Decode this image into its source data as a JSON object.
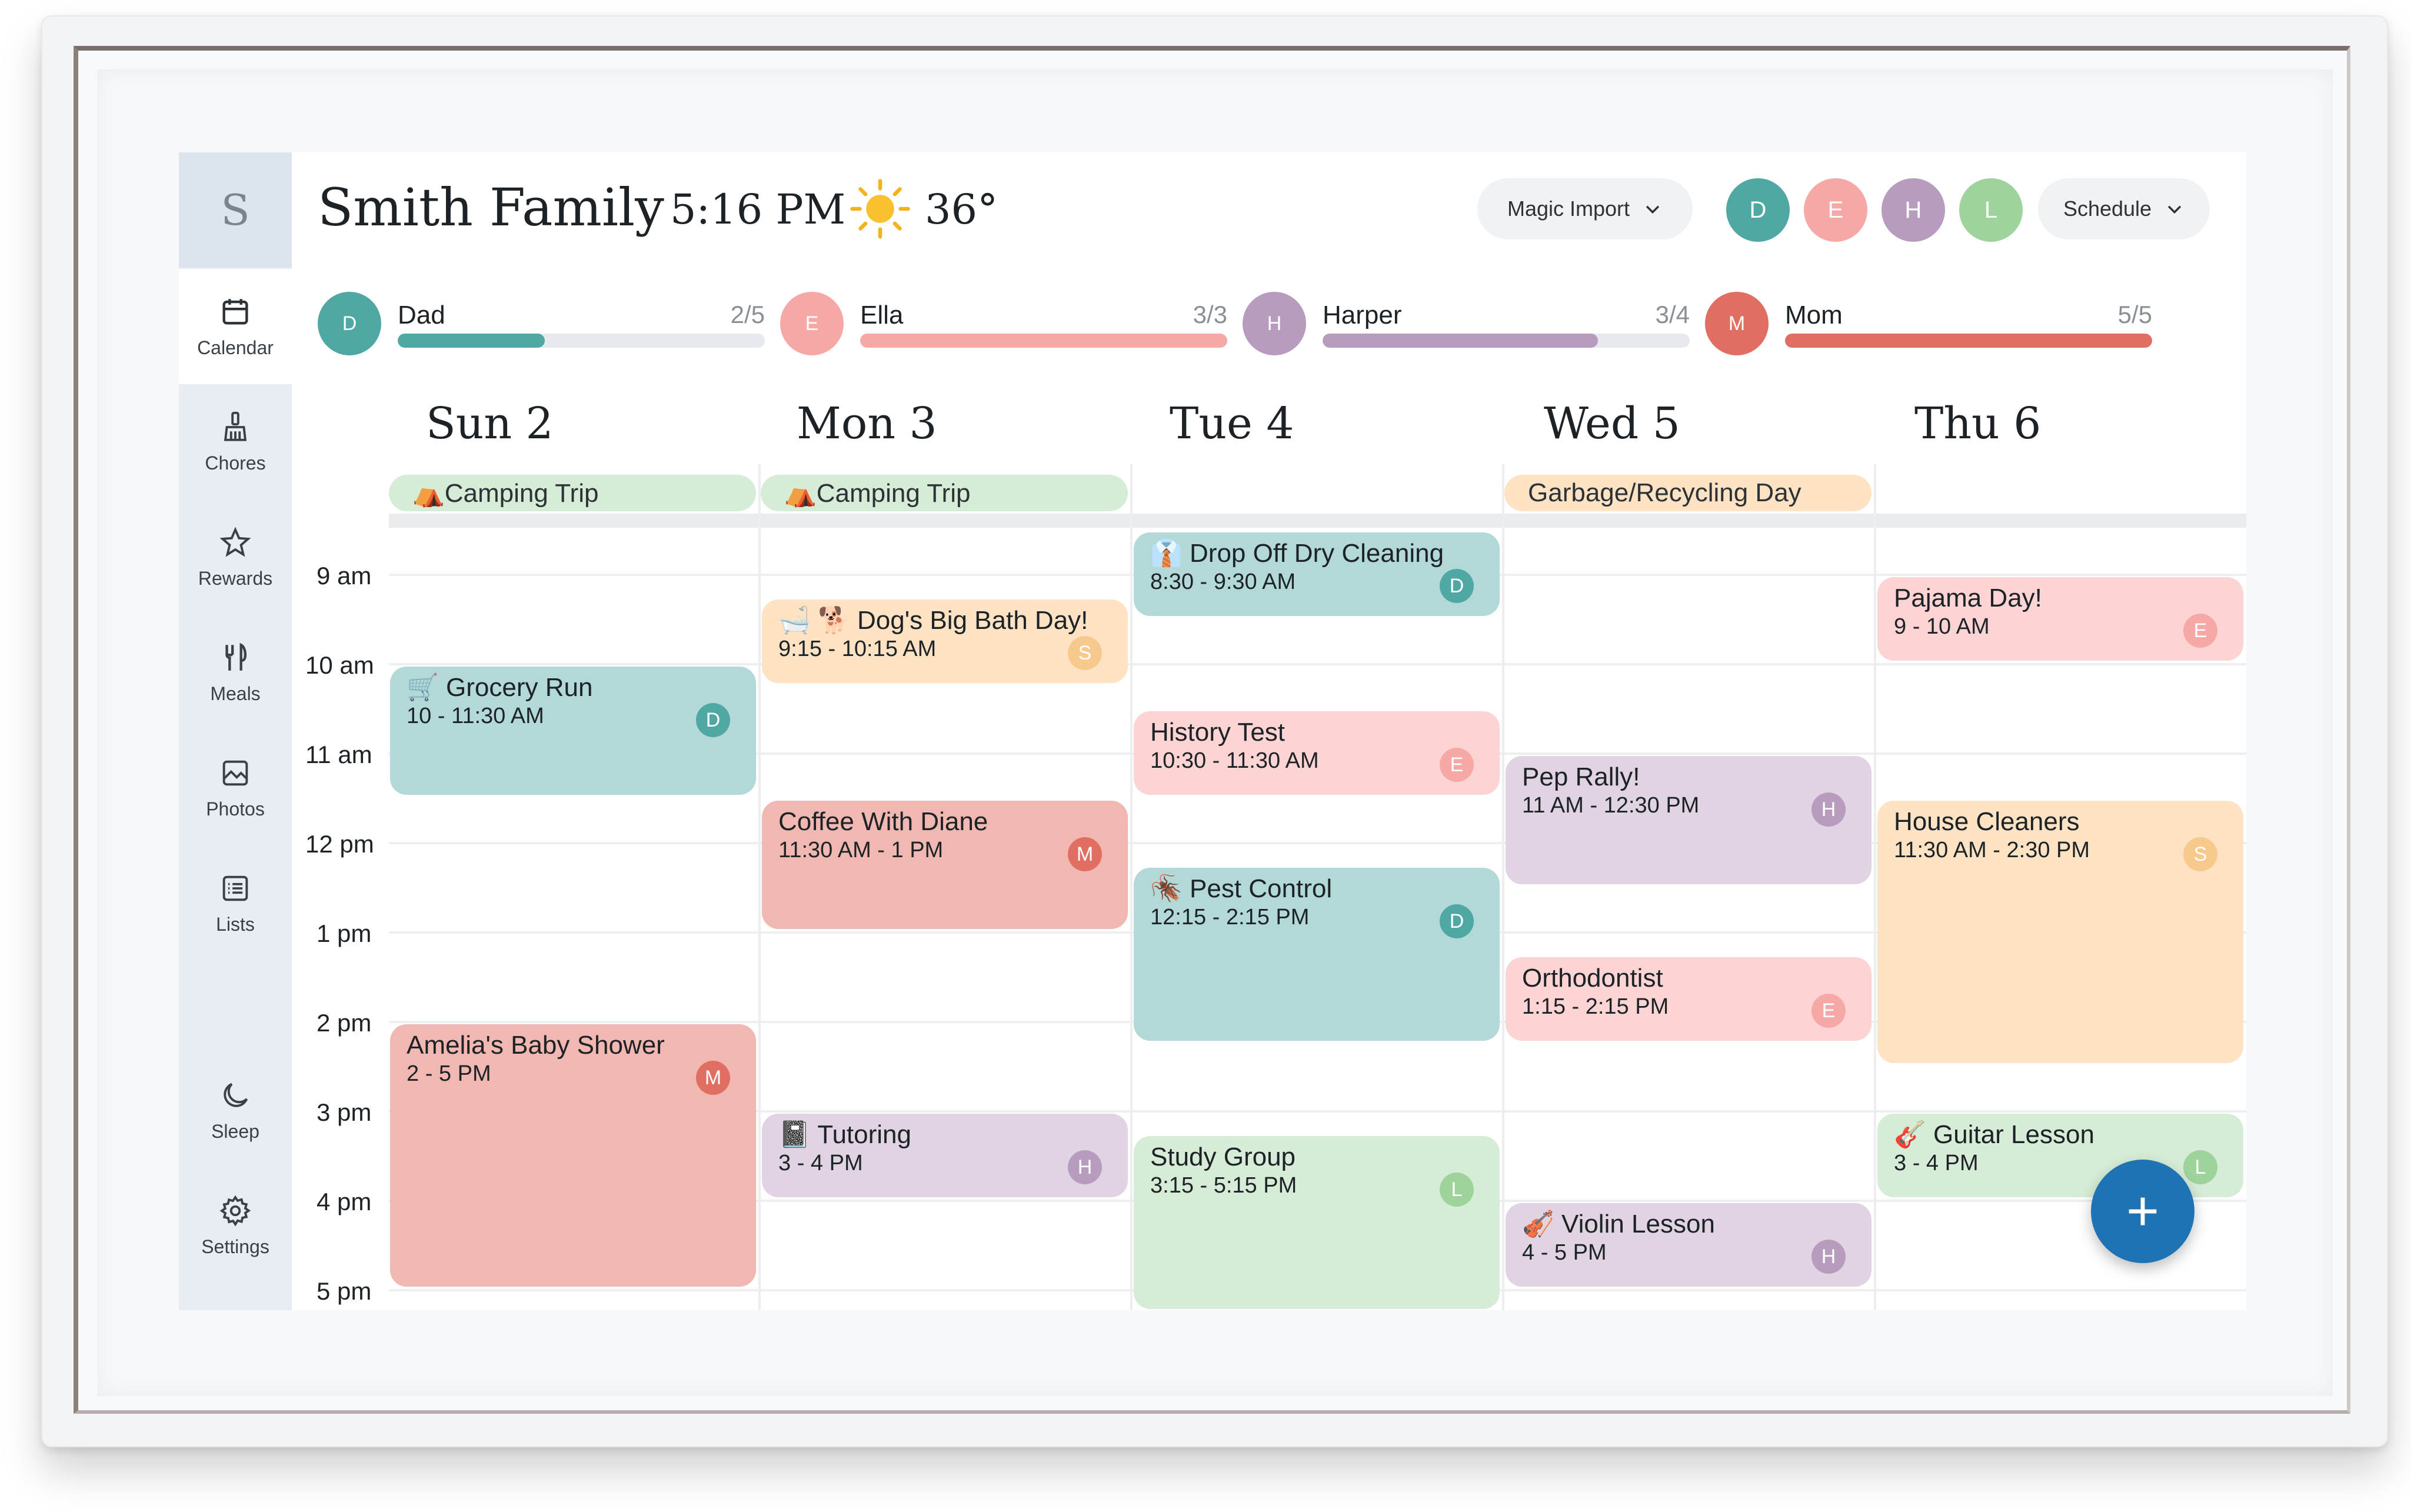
{
  "app": {
    "logo_letter": "S",
    "family_title": "Smith Family",
    "time": "5:16 PM",
    "weather_icon": "sun-icon",
    "temperature": "36°"
  },
  "header": {
    "magic_import_label": "Magic Import",
    "schedule_label": "Schedule",
    "avatars": [
      {
        "letter": "D",
        "color": "#4fa8a4"
      },
      {
        "letter": "E",
        "color": "#f6a8a6"
      },
      {
        "letter": "H",
        "color": "#b89cc0"
      },
      {
        "letter": "L",
        "color": "#9fd39c"
      }
    ]
  },
  "sidebar": {
    "items": [
      {
        "label": "Calendar",
        "icon": "calendar-icon"
      },
      {
        "label": "Chores",
        "icon": "broom-icon"
      },
      {
        "label": "Rewards",
        "icon": "star-icon"
      },
      {
        "label": "Meals",
        "icon": "utensils-icon"
      },
      {
        "label": "Photos",
        "icon": "photo-icon"
      },
      {
        "label": "Lists",
        "icon": "list-icon"
      },
      {
        "label": "Sleep",
        "icon": "moon-icon"
      },
      {
        "label": "Settings",
        "icon": "gear-icon"
      }
    ]
  },
  "progress": [
    {
      "letter": "D",
      "name": "Dad",
      "count": "2/5",
      "fraction": 0.4,
      "color": "#4fa8a4"
    },
    {
      "letter": "E",
      "name": "Ella",
      "count": "3/3",
      "fraction": 1.0,
      "color": "#f6a8a6"
    },
    {
      "letter": "H",
      "name": "Harper",
      "count": "3/4",
      "fraction": 0.75,
      "color": "#b89cc0"
    },
    {
      "letter": "M",
      "name": "Mom",
      "count": "5/5",
      "fraction": 1.0,
      "color": "#e06e62"
    }
  ],
  "days": [
    "Sun 2",
    "Mon 3",
    "Tue 4",
    "Wed 5",
    "Thu 6"
  ],
  "all_day_events": [
    {
      "day": 0,
      "title": "⛺Camping Trip",
      "color": "#d6ecd6"
    },
    {
      "day": 1,
      "title": "⛺Camping Trip",
      "color": "#d6ecd6"
    },
    {
      "day": 3,
      "title": "Garbage/Recycling Day",
      "color": "#fde3c4"
    }
  ],
  "hours": [
    "9 am",
    "10 am",
    "11 am",
    "12 pm",
    "1 pm",
    "2 pm",
    "3 pm",
    "4 pm",
    "5 pm"
  ],
  "events": [
    {
      "day": 0,
      "start": 10.0,
      "end": 11.5,
      "title": "🛒 Grocery Run",
      "time": "10 - 11:30 AM",
      "avatar": "D",
      "color": "#b2d9d8",
      "avatar_color": "#4fa8a4"
    },
    {
      "day": 0,
      "start": 14.0,
      "end": 17.0,
      "title": "Amelia's Baby Shower",
      "time": "2 - 5 PM",
      "avatar": "M",
      "color": "#f0b8b0",
      "avatar_color": "#e06e62"
    },
    {
      "day": 1,
      "start": 9.25,
      "end": 10.25,
      "title": "🛁 🐕 Dog's Big Bath Day!",
      "time": "9:15 - 10:15 AM",
      "avatar": "S",
      "color": "#fde3c4",
      "avatar_color": "#f8c98d"
    },
    {
      "day": 1,
      "start": 11.5,
      "end": 13.0,
      "title": "Coffee With Diane",
      "time": "11:30 AM - 1 PM",
      "avatar": "M",
      "color": "#f0b8b0",
      "avatar_color": "#e06e62"
    },
    {
      "day": 1,
      "start": 15.0,
      "end": 16.0,
      "title": "📓 Tutoring",
      "time": "3 - 4 PM",
      "avatar": "H",
      "color": "#e0d4e2",
      "avatar_color": "#b89cc0"
    },
    {
      "day": 2,
      "start": 8.5,
      "end": 9.5,
      "title": "👔 Drop Off Dry Cleaning",
      "time": "8:30 - 9:30 AM",
      "avatar": "D",
      "color": "#b2d9d8",
      "avatar_color": "#4fa8a4"
    },
    {
      "day": 2,
      "start": 10.5,
      "end": 11.5,
      "title": "History Test",
      "time": "10:30 - 11:30 AM",
      "avatar": "E",
      "color": "#fcd4d4",
      "avatar_color": "#f6a8a6"
    },
    {
      "day": 2,
      "start": 12.25,
      "end": 14.25,
      "title": "🪳 Pest Control",
      "time": "12:15 - 2:15 PM",
      "avatar": "D",
      "color": "#b2d9d8",
      "avatar_color": "#4fa8a4"
    },
    {
      "day": 2,
      "start": 15.25,
      "end": 17.25,
      "title": "Study Group",
      "time": "3:15 - 5:15 PM",
      "avatar": "L",
      "color": "#d6ecd6",
      "avatar_color": "#9fd39c"
    },
    {
      "day": 3,
      "start": 11.0,
      "end": 12.5,
      "title": "Pep Rally!",
      "time": "11 AM - 12:30 PM",
      "avatar": "H",
      "color": "#e0d4e2",
      "avatar_color": "#b89cc0"
    },
    {
      "day": 3,
      "start": 13.25,
      "end": 14.25,
      "title": "Orthodontist",
      "time": "1:15 - 2:15 PM",
      "avatar": "E",
      "color": "#fcd4d4",
      "avatar_color": "#f6a8a6"
    },
    {
      "day": 3,
      "start": 16.0,
      "end": 17.0,
      "title": "🎻 Violin Lesson",
      "time": "4 - 5 PM",
      "avatar": "H",
      "color": "#e0d4e2",
      "avatar_color": "#b89cc0"
    },
    {
      "day": 4,
      "start": 9.0,
      "end": 10.0,
      "title": "Pajama Day!",
      "time": "9 - 10 AM",
      "avatar": "E",
      "color": "#fcd4d4",
      "avatar_color": "#f6a8a6"
    },
    {
      "day": 4,
      "start": 11.5,
      "end": 14.5,
      "title": "House Cleaners",
      "time": "11:30 AM - 2:30 PM",
      "avatar": "S",
      "color": "#fde3c4",
      "avatar_color": "#f8c98d"
    },
    {
      "day": 4,
      "start": 15.0,
      "end": 16.0,
      "title": "🎸 Guitar Lesson",
      "time": "3 - 4 PM",
      "avatar": "L",
      "color": "#d6ecd6",
      "avatar_color": "#9fd39c"
    }
  ],
  "fab": {
    "label": "+",
    "icon": "plus-icon"
  }
}
